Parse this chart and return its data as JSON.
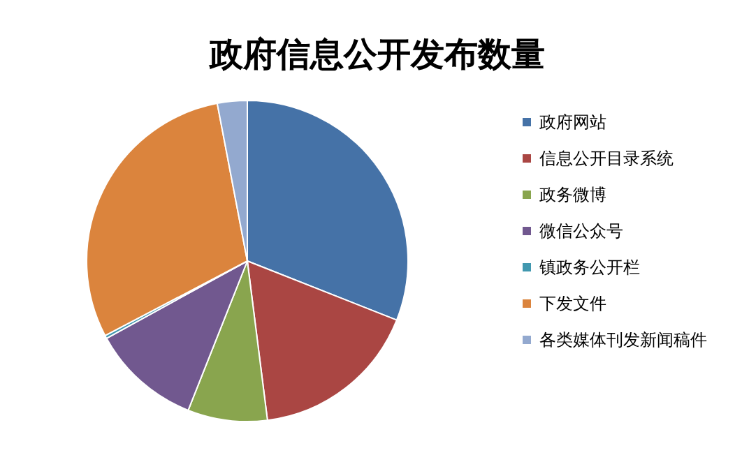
{
  "chart_data": {
    "type": "pie",
    "title": "政府信息公开发布数量",
    "categories": [
      "政府网站",
      "信息公开目录系统",
      "政务微博",
      "微信公众号",
      "镇政务公开栏",
      "下发文件",
      "各类媒体刊发新闻稿件"
    ],
    "values": [
      31,
      17,
      8,
      11,
      0.3,
      29.7,
      3
    ],
    "colors": [
      "#4572a7",
      "#aa4643",
      "#89a54e",
      "#71588f",
      "#4198af",
      "#db843d",
      "#93a9cf"
    ],
    "legend": "right"
  }
}
